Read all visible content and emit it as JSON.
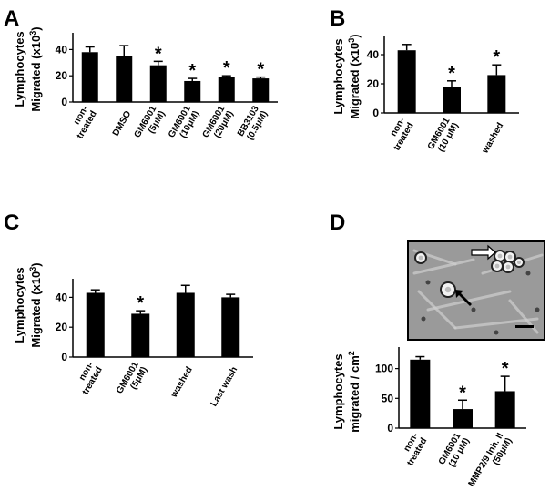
{
  "panels": [
    {
      "letter": "A",
      "ylabel_lines": [
        "Lymphocytes",
        "Migrated (x10",
        "3",
        ")"
      ],
      "type": "bar",
      "categories": [
        [
          "non-",
          "treated"
        ],
        [
          "DMSO"
        ],
        [
          "GM6001",
          "(5μM)"
        ],
        [
          "GM6001",
          "(10μM)"
        ],
        [
          "GM6001",
          "(20μM)"
        ],
        [
          "BB3103",
          "(0.5μM)"
        ]
      ],
      "values": [
        38,
        35,
        28,
        16,
        19,
        18
      ],
      "errors": [
        4,
        8,
        3,
        2,
        1,
        1
      ],
      "significant": [
        false,
        false,
        true,
        true,
        true,
        true
      ],
      "ylim": [
        0,
        50
      ],
      "yticks": [
        0,
        20,
        40
      ]
    },
    {
      "letter": "B",
      "ylabel_lines": [
        "Lymphocytes",
        "Migrated (x10",
        "3",
        ")"
      ],
      "type": "bar",
      "categories": [
        [
          "non-",
          "treated"
        ],
        [
          "GM6001",
          "(10 μM)"
        ],
        [
          "washed"
        ]
      ],
      "values": [
        43,
        18,
        26
      ],
      "errors": [
        4,
        4,
        7
      ],
      "significant": [
        false,
        true,
        true
      ],
      "ylim": [
        0,
        50
      ],
      "yticks": [
        0,
        20,
        40
      ]
    },
    {
      "letter": "C",
      "ylabel_lines": [
        "Lymphocytes",
        "Migrated (x10",
        "3",
        ")"
      ],
      "type": "bar",
      "categories": [
        [
          "non-",
          "treated"
        ],
        [
          "GM6001",
          "(5μM)"
        ],
        [
          "washed"
        ],
        [
          "Last wash"
        ]
      ],
      "values": [
        43,
        29,
        43,
        40
      ],
      "errors": [
        2,
        2,
        5,
        2
      ],
      "significant": [
        false,
        true,
        false,
        false
      ],
      "ylim": [
        0,
        50
      ],
      "yticks": [
        0,
        20,
        40
      ]
    },
    {
      "letter": "D",
      "ylabel_lines": [
        "Lymphocytes",
        "migrated / cm",
        "2"
      ],
      "type": "bar",
      "categories": [
        [
          "non-",
          "treated"
        ],
        [
          "GM6001",
          "(10 μM)"
        ],
        [
          "MMP2/9 Inh. II",
          "(50μM)"
        ]
      ],
      "values": [
        115,
        32,
        62
      ],
      "errors": [
        5,
        15,
        25
      ],
      "significant": [
        false,
        true,
        true
      ],
      "ylim": [
        0,
        130
      ],
      "yticks": [
        0,
        50,
        100
      ]
    }
  ],
  "star_symbol": "*",
  "colors": {
    "bar": "#000000",
    "axis": "#000000",
    "micrograph_bg": "#9a9a9a"
  },
  "micrograph": {
    "description_icon": "microscopy-image",
    "arrows": [
      "open-arrow",
      "filled-arrow"
    ],
    "scale_bar": true
  }
}
